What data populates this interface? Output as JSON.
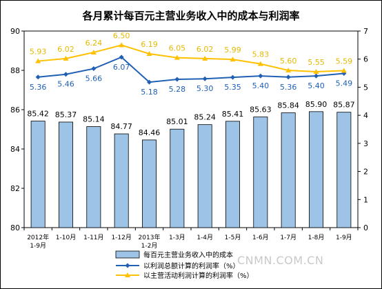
{
  "chart_data": {
    "type": "bar+line",
    "title": "各月累计每百元主营业务收入中的成本与利润率",
    "categories": [
      "2012年\n1-9月",
      "1-10月",
      "1-11月",
      "1-12月",
      "2013年\n1-2月",
      "1-3月",
      "1-4月",
      "1-5月",
      "1-6月",
      "1-7月",
      "1-8月",
      "1-9月"
    ],
    "bars": {
      "name": "每百元主营业务收入中的成本",
      "values": [
        85.42,
        85.37,
        85.14,
        84.77,
        84.46,
        85.01,
        85.24,
        85.41,
        85.63,
        85.84,
        85.9,
        85.87
      ],
      "axis": "left",
      "ylim": [
        80,
        90
      ],
      "ticks": [
        80,
        82,
        84,
        86,
        88,
        90
      ]
    },
    "series": [
      {
        "name": "以利润总额计算的利润率（%）",
        "values": [
          5.36,
          5.46,
          5.66,
          6.07,
          5.18,
          5.28,
          5.3,
          5.35,
          5.4,
          5.36,
          5.4,
          5.49
        ],
        "axis": "right",
        "color": "#1f5fb4",
        "marker": "diamond"
      },
      {
        "name": "以主营活动利润计算的利润率（%）",
        "values": [
          5.93,
          6.02,
          6.24,
          6.5,
          6.19,
          6.05,
          6.02,
          5.99,
          5.83,
          5.6,
          5.55,
          5.59
        ],
        "axis": "right",
        "color": "#ffc000",
        "marker": "triangle"
      }
    ],
    "right_axis": {
      "ylim": [
        0,
        7
      ],
      "ticks": [
        0,
        1,
        2,
        3,
        4,
        5,
        6,
        7
      ]
    },
    "colors": {
      "bar_fill": "#9dc3e6",
      "bar_stroke": "#000000",
      "bar_label": "#000000",
      "line1_label": "#1f5fb4",
      "line2_label": "#e6b800"
    },
    "grid": false,
    "legend": "bottom"
  },
  "watermark": "CNMN.COM.CN"
}
